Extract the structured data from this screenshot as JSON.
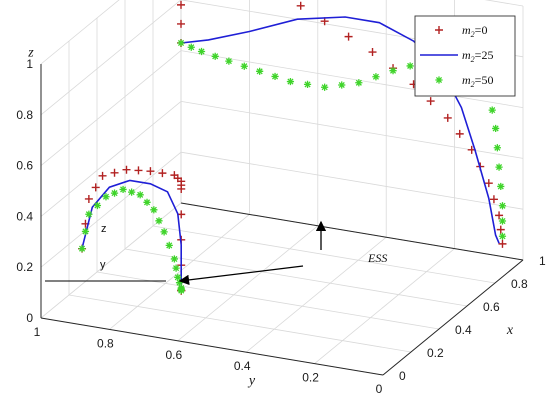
{
  "chart_data": {
    "type": "scatter",
    "projection": "3d",
    "axes": {
      "x": {
        "label": "x",
        "range": [
          0,
          1
        ],
        "ticks": [
          "0",
          "0.2",
          "0.4",
          "0.6",
          "0.8",
          "1"
        ]
      },
      "y": {
        "label": "y",
        "range": [
          0,
          1
        ],
        "ticks": [
          "0",
          "0.2",
          "0.4",
          "0.6",
          "0.8",
          "1"
        ]
      },
      "z": {
        "label": "z",
        "range": [
          0,
          1
        ],
        "ticks": [
          "0",
          "0.2",
          "0.4",
          "0.6",
          "0.8",
          "1"
        ]
      }
    },
    "grid": true,
    "legend": {
      "placement": "top-right",
      "entries": [
        {
          "var": "m",
          "sub": "2",
          "eq": "=0"
        },
        {
          "var": "m",
          "sub": "2",
          "eq": "=25"
        },
        {
          "var": "m",
          "sub": "2",
          "eq": "=50"
        }
      ]
    },
    "annotations": {
      "ess": "ESS",
      "inner_z": "z",
      "inner_y": "y"
    },
    "series": [
      {
        "marker": "plus",
        "color": "#b22222",
        "paths": [
          [
            [
              0,
              0.88,
              0.3
            ],
            [
              0,
              0.86,
              0.5
            ],
            [
              0,
              0.82,
              0.6
            ],
            [
              0,
              0.75,
              0.64
            ],
            [
              0,
              0.68,
              0.65
            ],
            [
              0,
              0.61,
              0.65
            ],
            [
              0,
              0.59,
              0.63
            ],
            [
              0,
              0.59,
              0.6
            ],
            [
              0,
              0.59,
              0.4
            ],
            [
              0,
              0.59,
              0.2
            ],
            [
              0,
              0.59,
              0.2
            ]
          ],
          [
            [
              1,
              1,
              0.63
            ],
            [
              1,
              1,
              0.78
            ],
            [
              1,
              0.99,
              0.9
            ],
            [
              1,
              0.96,
              0.98
            ],
            [
              1,
              0.92,
              1.0
            ],
            [
              1,
              0.84,
              0.97
            ],
            [
              1,
              0.72,
              0.9
            ],
            [
              1,
              0.58,
              0.81
            ],
            [
              1,
              0.44,
              0.72
            ],
            [
              1,
              0.32,
              0.62
            ],
            [
              1,
              0.22,
              0.51
            ],
            [
              1,
              0.15,
              0.4
            ],
            [
              1,
              0.1,
              0.28
            ],
            [
              1,
              0.07,
              0.16
            ],
            [
              1,
              0.06,
              0.05
            ]
          ]
        ]
      },
      {
        "marker": "line",
        "color": "#1f1fd6",
        "paths": [
          [
            [
              0,
              0.88,
              0.3
            ],
            [
              0,
              0.85,
              0.47
            ],
            [
              0,
              0.8,
              0.56
            ],
            [
              0,
              0.74,
              0.6
            ],
            [
              0,
              0.68,
              0.6
            ],
            [
              0,
              0.63,
              0.58
            ],
            [
              0,
              0.6,
              0.5
            ],
            [
              0,
              0.59,
              0.38
            ],
            [
              0,
              0.59,
              0.2
            ]
          ],
          [
            [
              1,
              1,
              0.63
            ],
            [
              1,
              0.92,
              0.66
            ],
            [
              1,
              0.8,
              0.72
            ],
            [
              1,
              0.66,
              0.8
            ],
            [
              1,
              0.52,
              0.84
            ],
            [
              1,
              0.42,
              0.84
            ],
            [
              1,
              0.32,
              0.79
            ],
            [
              1,
              0.24,
              0.7
            ],
            [
              1,
              0.18,
              0.56
            ],
            [
              1,
              0.14,
              0.4
            ],
            [
              1,
              0.1,
              0.22
            ],
            [
              1,
              0.08,
              0.08
            ],
            [
              1,
              0.07,
              0.05
            ]
          ]
        ]
      },
      {
        "marker": "star",
        "color": "#3fd42a",
        "paths": [
          [
            [
              0,
              0.88,
              0.3
            ],
            [
              0,
              0.86,
              0.44
            ],
            [
              0,
              0.81,
              0.52
            ],
            [
              0,
              0.76,
              0.56
            ],
            [
              0,
              0.71,
              0.55
            ],
            [
              0,
              0.67,
              0.5
            ],
            [
              0,
              0.64,
              0.42
            ],
            [
              0,
              0.61,
              0.32
            ],
            [
              0,
              0.6,
              0.25
            ],
            [
              0,
              0.59,
              0.21
            ],
            [
              0,
              0.59,
              0.2
            ]
          ],
          [
            [
              1,
              1,
              0.63
            ],
            [
              1,
              0.94,
              0.61
            ],
            [
              1,
              0.86,
              0.59
            ],
            [
              1,
              0.77,
              0.57
            ],
            [
              1,
              0.68,
              0.55
            ],
            [
              1,
              0.58,
              0.55
            ],
            [
              1,
              0.48,
              0.59
            ],
            [
              1,
              0.38,
              0.66
            ],
            [
              1,
              0.28,
              0.72
            ],
            [
              1,
              0.19,
              0.75
            ],
            [
              1,
              0.13,
              0.73
            ],
            [
              1,
              0.1,
              0.64
            ],
            [
              1,
              0.08,
              0.5
            ],
            [
              1,
              0.07,
              0.35
            ],
            [
              1,
              0.06,
              0.2
            ],
            [
              1,
              0.06,
              0.08
            ]
          ]
        ]
      }
    ]
  }
}
